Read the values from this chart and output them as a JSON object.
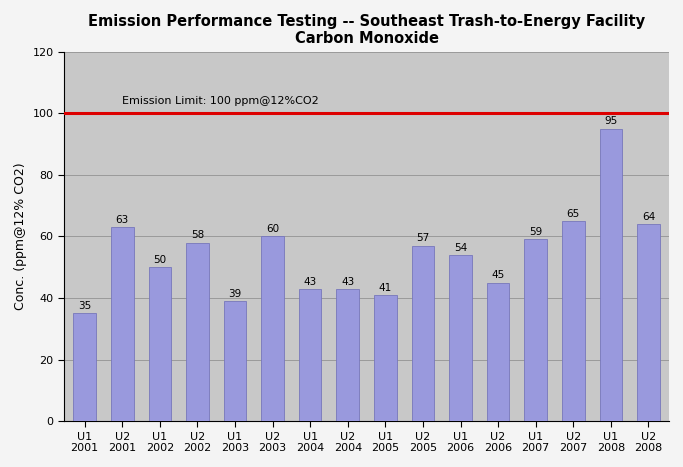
{
  "title_line1": "Emission Performance Testing -- Southeast Trash-to-Energy Facility",
  "title_line2": "Carbon Monoxide",
  "ylabel": "Conc. (ppm@12% CO2)",
  "ylim": [
    0,
    120
  ],
  "yticks": [
    0,
    20,
    40,
    60,
    80,
    100,
    120
  ],
  "emission_limit": 100,
  "emission_limit_label": "Emission Limit: 100 ppm@12%CO2",
  "bar_color": "#9999dd",
  "bar_edgecolor": "#7777bb",
  "line_color": "#dd0000",
  "plot_bg_color": "#c8c8c8",
  "fig_bg_color": "#f4f4f4",
  "categories": [
    "U1\n2001",
    "U2\n2001",
    "U1\n2002",
    "U2\n2002",
    "U1\n2003",
    "U2\n2003",
    "U1\n2004",
    "U2\n2004",
    "U1\n2005",
    "U2\n2005",
    "U1\n2006",
    "U2\n2006",
    "U1\n2007",
    "U2\n2007",
    "U1\n2008",
    "U2\n2008"
  ],
  "values": [
    35,
    63,
    50,
    58,
    39,
    60,
    43,
    43,
    41,
    57,
    54,
    45,
    59,
    65,
    95,
    64
  ],
  "title_fontsize": 10.5,
  "axis_label_fontsize": 9,
  "tick_fontsize": 8,
  "value_label_fontsize": 7.5,
  "annotation_fontsize": 8
}
